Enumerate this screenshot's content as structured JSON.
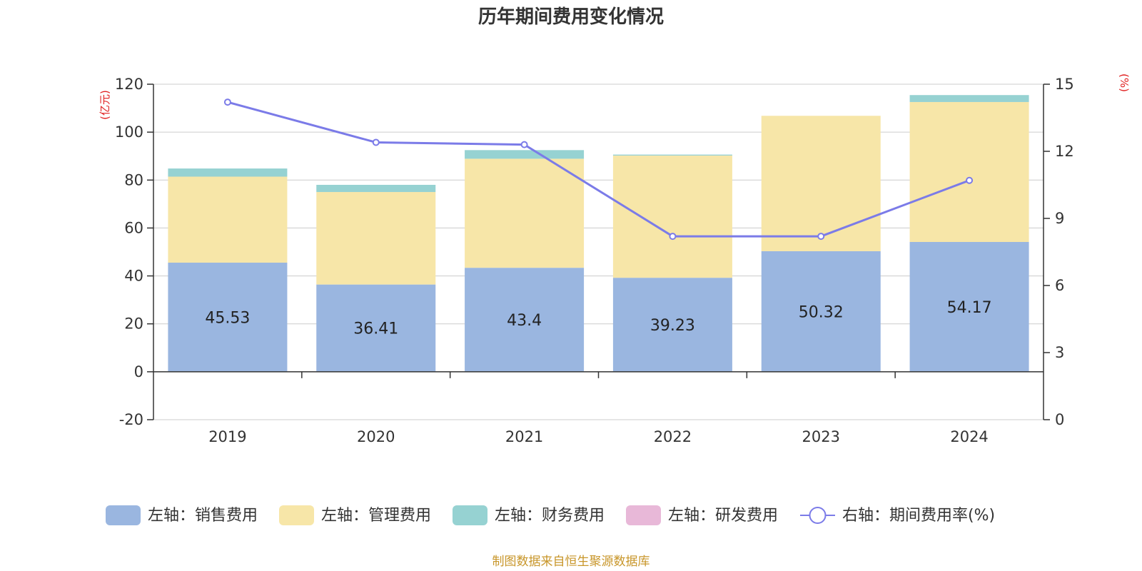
{
  "chart_data": {
    "type": "bar",
    "title": "历年期间费用变化情况",
    "categories": [
      "2019",
      "2020",
      "2021",
      "2022",
      "2023",
      "2024"
    ],
    "y_left": {
      "unit": "(亿元)",
      "ylim": [
        -20,
        120
      ],
      "ticks": [
        -20,
        0,
        20,
        40,
        60,
        80,
        100,
        120
      ]
    },
    "y_right": {
      "unit": "(%)",
      "ylim": [
        0,
        15
      ],
      "ticks": [
        0,
        3,
        6,
        9,
        12,
        15
      ]
    },
    "series": [
      {
        "name": "左轴：销售费用",
        "kind": "bar",
        "axis": "left",
        "color": "#9ab6e0",
        "values": [
          45.53,
          36.41,
          43.4,
          39.23,
          50.32,
          54.17
        ],
        "labels": [
          "45.53",
          "36.41",
          "43.4",
          "39.23",
          "50.32",
          "54.17"
        ]
      },
      {
        "name": "左轴：管理费用",
        "kind": "bar",
        "axis": "left",
        "color": "#f7e6a8",
        "values": [
          35.9,
          38.6,
          45.5,
          51.0,
          56.5,
          58.4
        ]
      },
      {
        "name": "左轴：财务费用",
        "kind": "bar",
        "axis": "left",
        "color": "#96d2d2",
        "values": [
          3.4,
          3.0,
          3.6,
          0.4,
          0.0,
          2.9
        ]
      },
      {
        "name": "左轴：研发费用",
        "kind": "bar",
        "axis": "left",
        "color": "#e8b8d8",
        "values": [
          0,
          0,
          0,
          0,
          0,
          0
        ]
      },
      {
        "name": "右轴：期间费用率(%)",
        "kind": "line",
        "axis": "right",
        "color": "#7b7be8",
        "values": [
          14.2,
          12.4,
          12.3,
          8.2,
          8.2,
          10.7
        ]
      }
    ],
    "grid": true,
    "legend_position": "bottom"
  },
  "footer": {
    "source": "制图数据来自恒生聚源数据库"
  }
}
